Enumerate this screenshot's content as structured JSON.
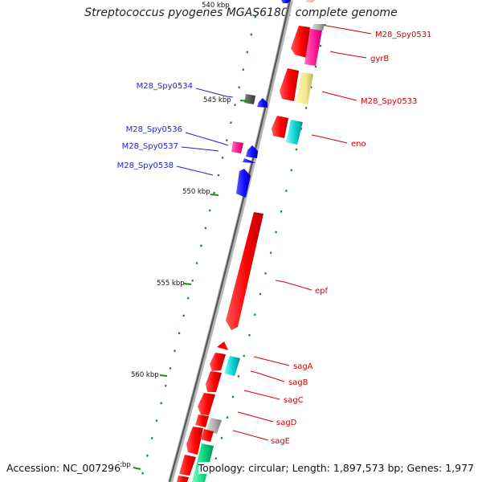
{
  "title": "Streptococcus pyogenes MGAS6180, complete genome",
  "footer": {
    "accession": "Accession: NC_007296",
    "stats": "Topology: circular; Length: 1,897,573 bp; Genes: 1,977"
  },
  "scale_ticks": [
    {
      "label": "540 kbp"
    },
    {
      "label": "545 kbp"
    },
    {
      "label": "550 kbp"
    },
    {
      "label": "555 kbp"
    },
    {
      "label": "560 kbp"
    },
    {
      "label": "kbp"
    }
  ],
  "gene_labels_right": [
    "M28_Spy0531",
    "gyrB",
    "M28_Spy0533",
    "eno",
    "epf",
    "sagA",
    "sagB",
    "sagC",
    "sagD",
    "sagE"
  ],
  "gene_labels_left": [
    "M28_Spy0534",
    "M28_Spy0536",
    "M28_Spy0537",
    "M28_Spy0538"
  ],
  "colors": {
    "backbone": "#8c8c8c",
    "forward_gene": "#ff0000",
    "reverse_gene": "#1010ff",
    "label_right": "#d40000",
    "label_left": "#1f1fd2",
    "cog_magenta": "#ff1493",
    "cog_yellow": "#f0e68c",
    "cog_cyan": "#00cccc",
    "cog_grey": "#999999",
    "cog_green": "#00d27a",
    "gc_marks": "#1a8a1a"
  }
}
